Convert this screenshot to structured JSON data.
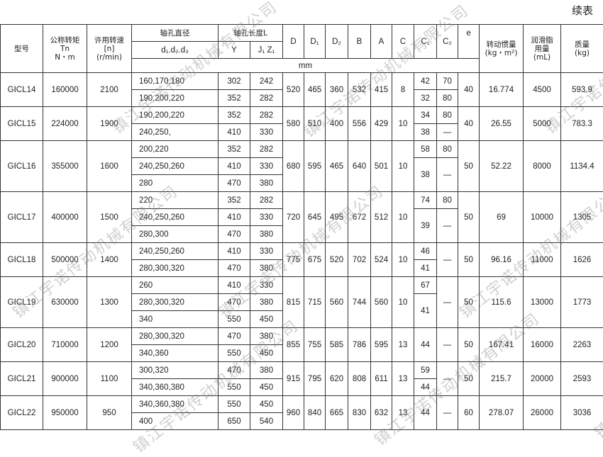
{
  "continued_label": "续表",
  "header": {
    "model": "型号",
    "torque": "公称转矩\nTn\nN・m",
    "speed": "许用转速\n[n]\n(r/min)",
    "bore_diameter": "轴孔直径",
    "bore_diameter_sub": "d₁.d₂.d₃",
    "bore_length": "轴孔长度L",
    "Y": "Y",
    "J1Z1": "J₁ Z₁",
    "D": "D",
    "D1": "D₁",
    "D2": "D₂",
    "B": "B",
    "A": "A",
    "C": "C",
    "C1": "C₁",
    "C2": "C₂",
    "e": "e",
    "unit_mm": "mm",
    "inertia": "转动惯量\n(kg・m²)",
    "grease": "润滑脂\n用量\n(mL)",
    "mass": "质量\n(kg)"
  },
  "rows": [
    {
      "model": "GⅠCL14",
      "tn": "160000",
      "n": "2100",
      "bores": [
        [
          "160,170,180",
          "302",
          "242"
        ],
        [
          "190,200,220",
          "352",
          "282"
        ]
      ],
      "D": "520",
      "D1": "465",
      "D2": "360",
      "B": "532",
      "A": "415",
      "C": "8",
      "C1": [
        "42",
        "32"
      ],
      "C2": [
        "70",
        "80"
      ],
      "e": "40",
      "inertia": "16.774",
      "grease": "4500",
      "mass": "593.9"
    },
    {
      "model": "GⅠCL15",
      "tn": "224000",
      "n": "1900",
      "bores": [
        [
          "190,200,220",
          "352",
          "282"
        ],
        [
          "240,250,",
          "410",
          "330"
        ]
      ],
      "D": "580",
      "D1": "510",
      "D2": "400",
      "B": "556",
      "A": "429",
      "C": "10",
      "C1": [
        "34",
        "38"
      ],
      "C2": [
        "80",
        "—"
      ],
      "e": "40",
      "inertia": "26.55",
      "grease": "5000",
      "mass": "783.3"
    },
    {
      "model": "GⅠCL16",
      "tn": "355000",
      "n": "1600",
      "bores": [
        [
          "200,220",
          "352",
          "282"
        ],
        [
          "240,250,260",
          "410",
          "330"
        ],
        [
          "280",
          "470",
          "380"
        ]
      ],
      "D": "680",
      "D1": "595",
      "D2": "465",
      "B": "640",
      "A": "501",
      "C": "10",
      "C1": [
        "58",
        "38"
      ],
      "C2": [
        "80",
        "—"
      ],
      "e": "50",
      "inertia": "52.22",
      "grease": "8000",
      "mass": "1134.4"
    },
    {
      "model": "GⅠCL17",
      "tn": "400000",
      "n": "1500",
      "bores": [
        [
          "220",
          "352",
          "282"
        ],
        [
          "240,250,260",
          "410",
          "330"
        ],
        [
          "280,300",
          "470",
          "380"
        ]
      ],
      "D": "720",
      "D1": "645",
      "D2": "495",
      "B": "672",
      "A": "512",
      "C": "10",
      "C1": [
        "74",
        "39"
      ],
      "C2": [
        "80",
        "—"
      ],
      "e": "50",
      "inertia": "69",
      "grease": "10000",
      "mass": "1305"
    },
    {
      "model": "GⅠCL18",
      "tn": "500000",
      "n": "1400",
      "bores": [
        [
          "240,250,260",
          "410",
          "330"
        ],
        [
          "280,300,320",
          "470",
          "380"
        ]
      ],
      "D": "775",
      "D1": "675",
      "D2": "520",
      "B": "702",
      "A": "524",
      "C": "10",
      "C1": [
        "46",
        "41"
      ],
      "C2": [
        "—"
      ],
      "e": "50",
      "inertia": "96.16",
      "grease": "11000",
      "mass": "1626"
    },
    {
      "model": "GⅠCL19",
      "tn": "630000",
      "n": "1300",
      "bores": [
        [
          "260",
          "410",
          "330"
        ],
        [
          "280,300,320",
          "470",
          "380"
        ],
        [
          "340",
          "550",
          "450"
        ]
      ],
      "D": "815",
      "D1": "715",
      "D2": "560",
      "B": "744",
      "A": "560",
      "C": "10",
      "C1": [
        "67",
        "41"
      ],
      "C2": [
        "—"
      ],
      "e": "50",
      "inertia": "115.6",
      "grease": "13000",
      "mass": "1773"
    },
    {
      "model": "GⅠCL20",
      "tn": "710000",
      "n": "1200",
      "bores": [
        [
          "280,300,320",
          "470",
          "380"
        ],
        [
          "340,360",
          "550",
          "450"
        ]
      ],
      "D": "855",
      "D1": "755",
      "D2": "585",
      "B": "786",
      "A": "595",
      "C": "13",
      "C1": [
        "44"
      ],
      "C2": [
        "—"
      ],
      "e": "50",
      "inertia": "167.41",
      "grease": "16000",
      "mass": "2263"
    },
    {
      "model": "GⅠCL21",
      "tn": "900000",
      "n": "1100",
      "bores": [
        [
          "300,320",
          "470",
          "380"
        ],
        [
          "340,360,380",
          "550",
          "450"
        ]
      ],
      "D": "915",
      "D1": "795",
      "D2": "620",
      "B": "808",
      "A": "611",
      "C": "13",
      "C1": [
        "59",
        "44"
      ],
      "C2": [
        "—"
      ],
      "e": "50",
      "inertia": "215.7",
      "grease": "20000",
      "mass": "2593"
    },
    {
      "model": "GⅠCL22",
      "tn": "950000",
      "n": "950",
      "bores": [
        [
          "340,360,380",
          "550",
          "450"
        ],
        [
          "400",
          "650",
          "540"
        ]
      ],
      "D": "960",
      "D1": "840",
      "D2": "665",
      "B": "830",
      "A": "632",
      "C": "13",
      "C1": [
        "44"
      ],
      "C2": [
        "—"
      ],
      "e": "60",
      "inertia": "278.07",
      "grease": "26000",
      "mass": "3036"
    }
  ],
  "watermark": "镇江宇诺传动机械有限公司"
}
